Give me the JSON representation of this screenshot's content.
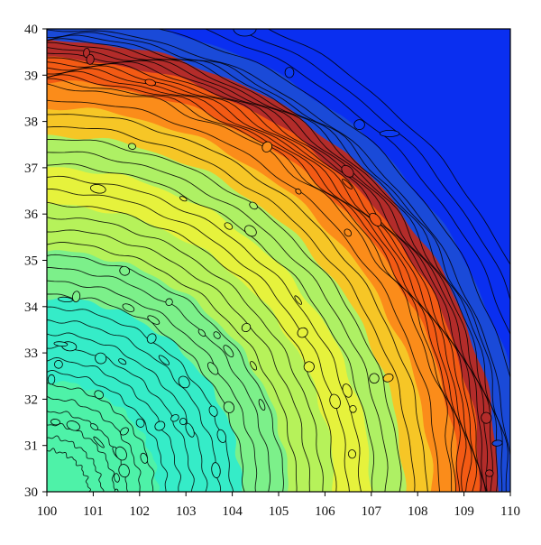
{
  "chart_data": {
    "type": "heatmap",
    "subtype": "filled-contour",
    "title": "",
    "xlabel": "",
    "ylabel": "",
    "xlim": [
      100,
      110
    ],
    "ylim": [
      30,
      40
    ],
    "x_ticks": [
      100,
      101,
      102,
      103,
      104,
      105,
      106,
      107,
      108,
      109,
      110
    ],
    "y_ticks": [
      30,
      31,
      32,
      33,
      34,
      35,
      36,
      37,
      38,
      39,
      40
    ],
    "grid": false,
    "legend": "none",
    "colormap": "jet",
    "center": [
      100,
      30
    ],
    "bands": [
      {
        "r_from": 0.0,
        "r_to": 2.4,
        "color": "#4ef2a8"
      },
      {
        "r_from": 2.4,
        "r_to": 4.2,
        "color": "#35ecc8"
      },
      {
        "r_from": 4.2,
        "r_to": 5.2,
        "color": "#7cf08a"
      },
      {
        "r_from": 5.2,
        "r_to": 6.2,
        "color": "#b6f25a"
      },
      {
        "r_from": 6.2,
        "r_to": 7.0,
        "color": "#e6f23c"
      },
      {
        "r_from": 7.0,
        "r_to": 7.7,
        "color": "#aef064"
      },
      {
        "r_from": 7.7,
        "r_to": 8.3,
        "color": "#f6c626"
      },
      {
        "r_from": 8.3,
        "r_to": 8.85,
        "color": "#fb8c1a"
      },
      {
        "r_from": 8.85,
        "r_to": 9.35,
        "color": "#f35a14"
      },
      {
        "r_from": 9.35,
        "r_to": 9.75,
        "color": "#b32c2a"
      },
      {
        "r_from": 9.75,
        "r_to": 10.3,
        "color": "#1a4ad8"
      },
      {
        "r_from": 10.3,
        "r_to": 20.0,
        "color": "#0a2ff0"
      }
    ],
    "background_color": "#0a2ff0"
  }
}
